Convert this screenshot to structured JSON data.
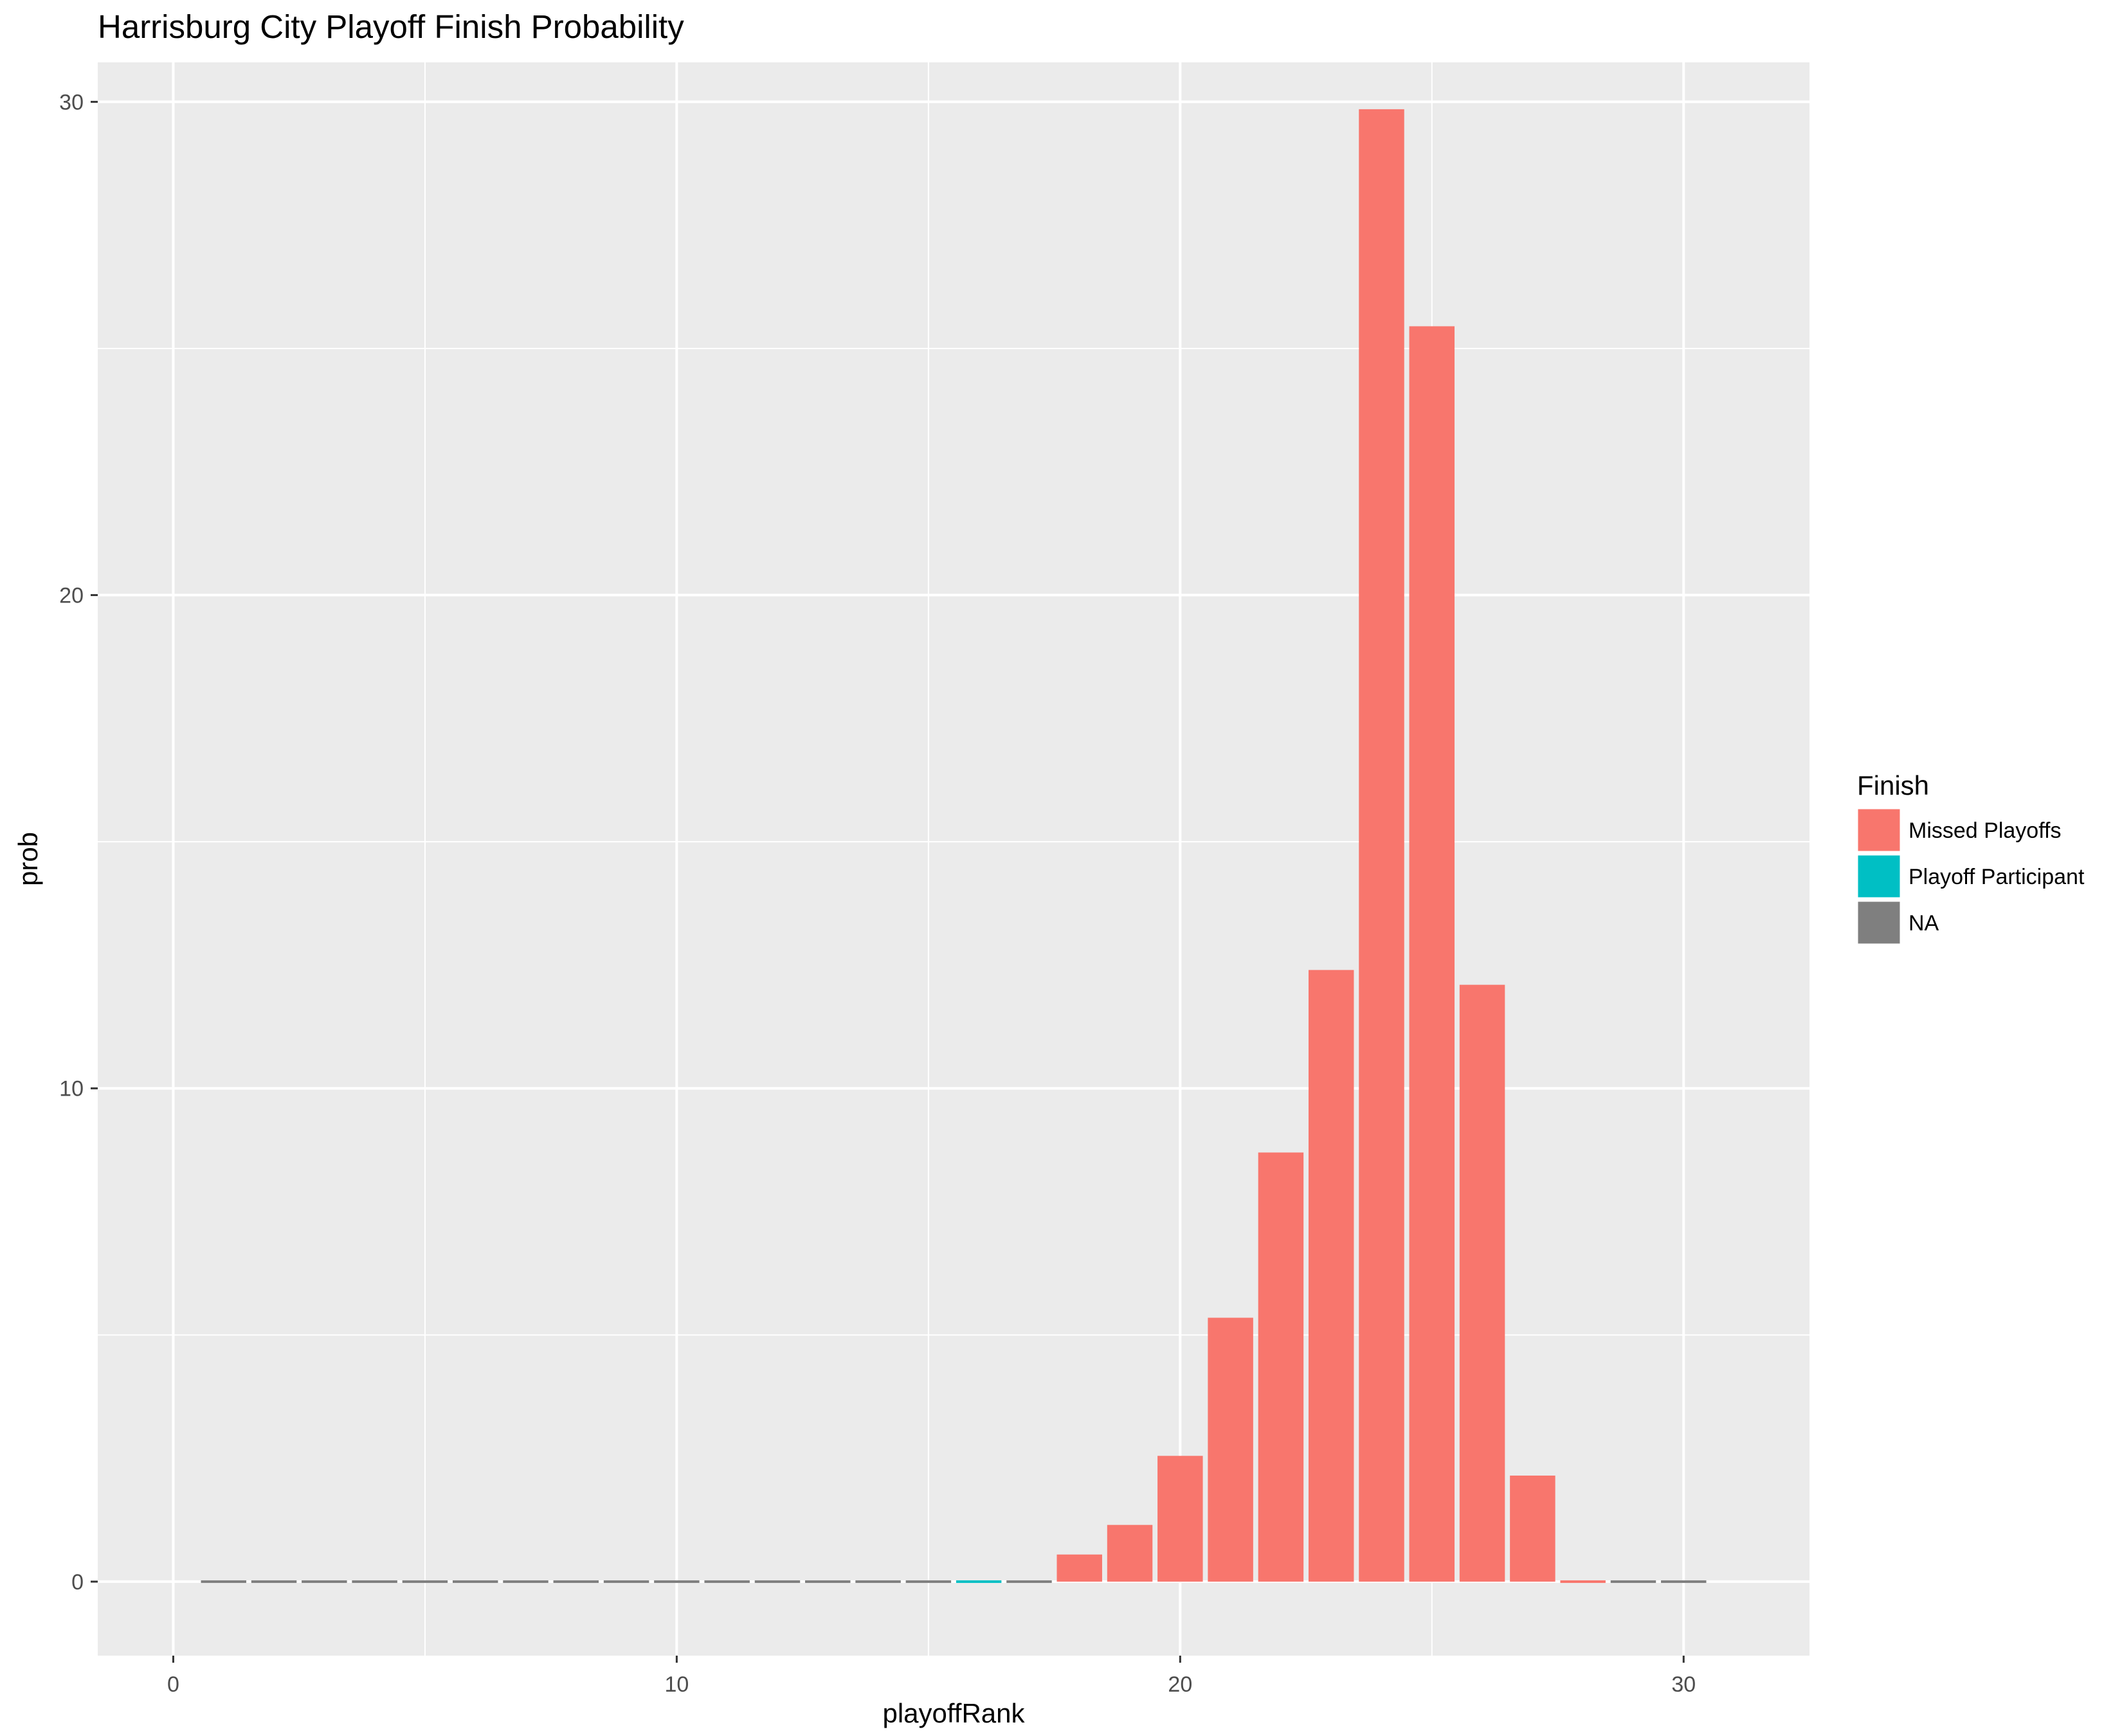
{
  "chart_data": {
    "type": "bar",
    "title": "Harrisburg City Playoff Finish Probability",
    "xlabel": "playoffRank",
    "ylabel": "prob",
    "xlim": [
      -1.5,
      32.5
    ],
    "ylim": [
      -1.5,
      30.8
    ],
    "x_ticks": [
      0,
      10,
      20,
      30
    ],
    "y_ticks": [
      0,
      10,
      20,
      30
    ],
    "x_tick_labels": [
      "0",
      "10",
      "20",
      "30"
    ],
    "y_tick_labels": [
      "0",
      "10",
      "20",
      "30"
    ],
    "grid": true,
    "legend": {
      "title": "Finish",
      "position": "right",
      "entries": [
        {
          "label": "Missed Playoffs",
          "color": "#F8766D"
        },
        {
          "label": "Playoff Participant",
          "color": "#00BFC4"
        },
        {
          "label": "NA",
          "color": "#7F7F7F"
        }
      ]
    },
    "series": [
      {
        "name": "Missed Playoffs",
        "color": "#F8766D",
        "x": [
          18,
          19,
          20,
          21,
          22,
          23,
          24,
          25,
          26,
          27,
          28
        ],
        "values": [
          0.55,
          1.15,
          2.55,
          5.35,
          8.7,
          12.4,
          29.85,
          25.45,
          12.1,
          2.15,
          0.0
        ]
      },
      {
        "name": "Playoff Participant",
        "color": "#00BFC4",
        "x": [
          16
        ],
        "values": [
          0.02
        ]
      },
      {
        "name": "NA",
        "color": "#7F7F7F",
        "x": [
          1,
          2,
          3,
          4,
          5,
          6,
          7,
          8,
          9,
          10,
          11,
          12,
          13,
          14,
          15,
          17,
          29,
          30
        ],
        "values": [
          0.0,
          0.0,
          0.0,
          0.0,
          0.0,
          0.0,
          0.0,
          0.0,
          0.0,
          0.0,
          0.0,
          0.0,
          0.0,
          0.0,
          0.0,
          0.0,
          0.0,
          0.0
        ]
      }
    ]
  }
}
